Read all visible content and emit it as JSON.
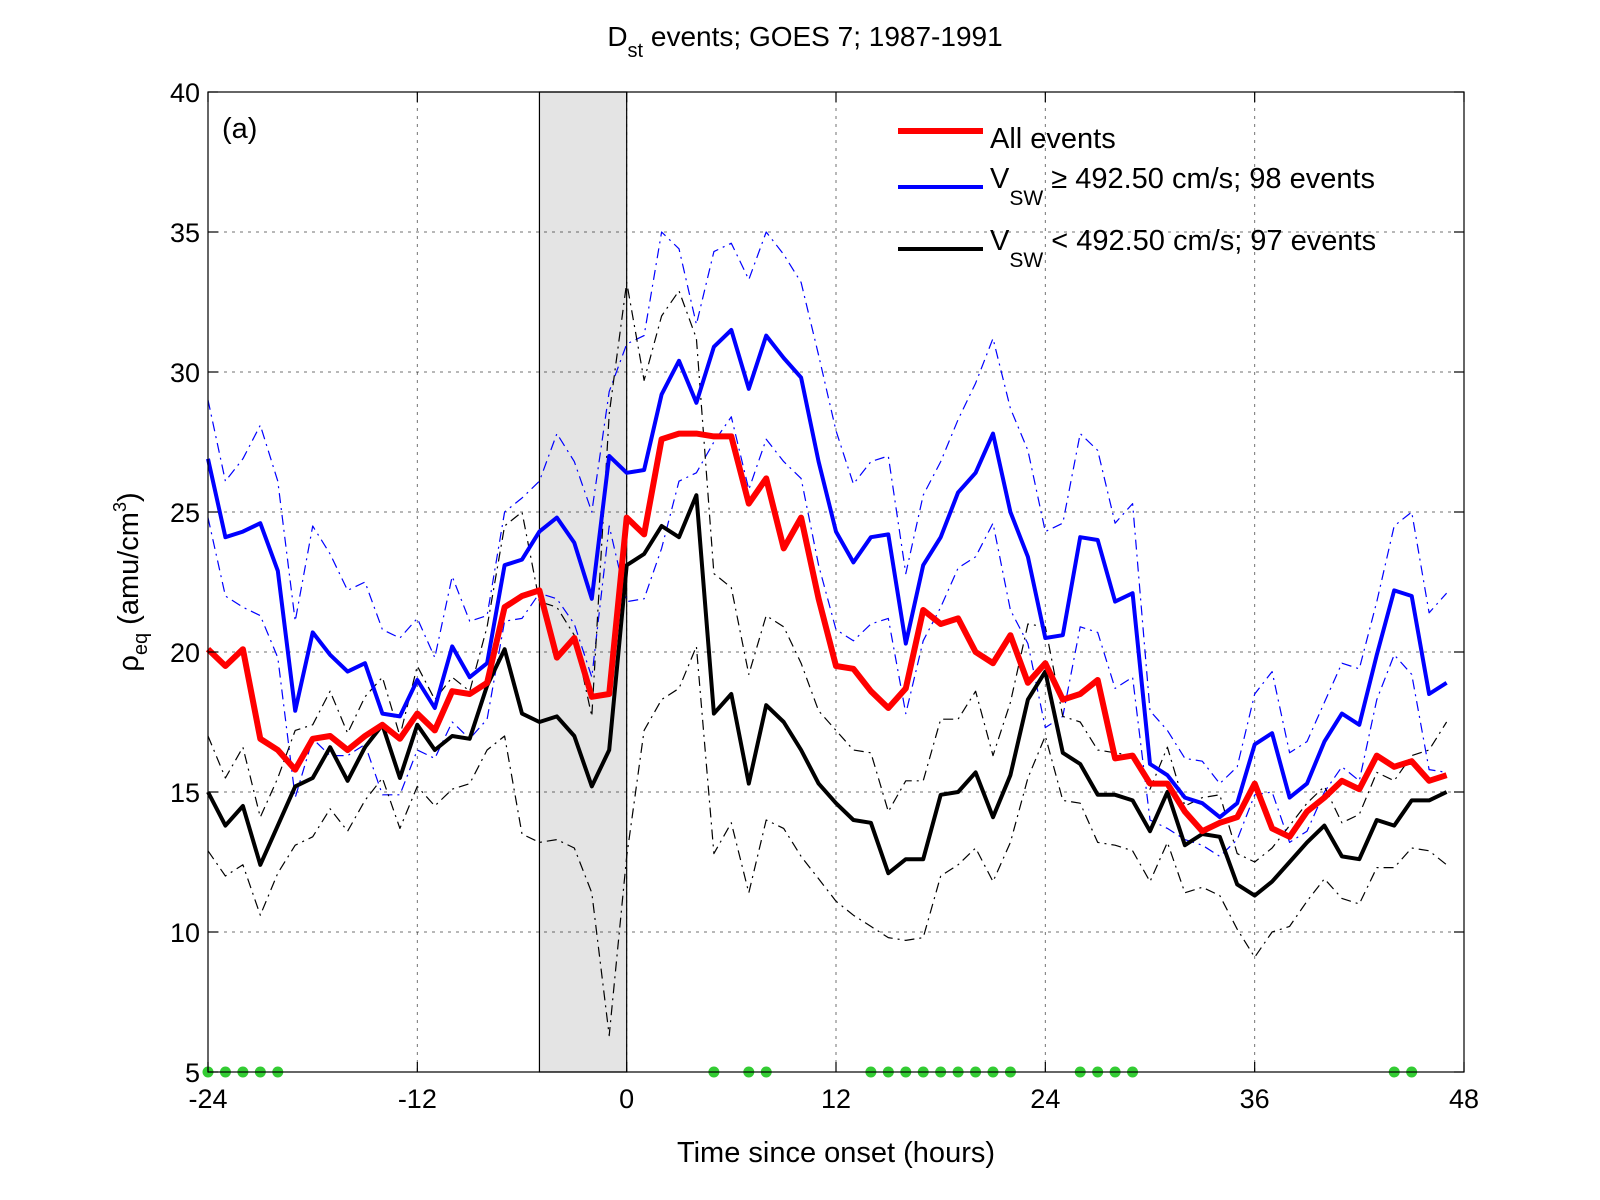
{
  "chart_data": {
    "type": "line",
    "title": "D",
    "title_sub": "st",
    "title_rest": " events; GOES 7; 1987-1991",
    "panel_label": "(a)",
    "xlabel": "Time since onset (hours)",
    "ylabel_main": "ρ",
    "ylabel_sub": "eq",
    "ylabel_rest": " (amu/cm",
    "ylabel_sup": "3",
    "ylabel_close": ")",
    "xlim": [
      -24,
      48
    ],
    "ylim": [
      5,
      40
    ],
    "xticks": [
      -24,
      -12,
      0,
      12,
      24,
      36,
      48
    ],
    "yticks": [
      5,
      10,
      15,
      20,
      25,
      30,
      35,
      40
    ],
    "grid": true,
    "legend_position": "top-right",
    "shaded_interval": [
      -5,
      0
    ],
    "colors": {
      "all": "#ff0000",
      "high": "#0000ff",
      "low": "#000000",
      "dots": "#33cc33",
      "shade": "#e4e4e4"
    },
    "legend": [
      {
        "key": "all",
        "label": "All events",
        "sub": "",
        "rest": ""
      },
      {
        "key": "high",
        "label": "V",
        "sub": "SW",
        "rest": "  ≥ 492.50 cm/s; 98 events"
      },
      {
        "key": "low",
        "label": "V",
        "sub": "SW",
        "rest": " < 492.50 cm/s; 97 events"
      }
    ],
    "x": [
      -24,
      -23,
      -22,
      -21,
      -20,
      -19,
      -18,
      -17,
      -16,
      -15,
      -14,
      -13,
      -12,
      -11,
      -10,
      -9,
      -8,
      -7,
      -6,
      -5,
      -4,
      -3,
      -2,
      -1,
      0,
      1,
      2,
      3,
      4,
      5,
      6,
      7,
      8,
      9,
      10,
      11,
      12,
      13,
      14,
      15,
      16,
      17,
      18,
      19,
      20,
      21,
      22,
      23,
      24,
      25,
      26,
      27,
      28,
      29,
      30,
      31,
      32,
      33,
      34,
      35,
      36,
      37,
      38,
      39,
      40,
      41,
      42,
      43,
      44,
      45,
      46,
      47
    ],
    "series": [
      {
        "key": "all",
        "role": "mean",
        "values": [
          20.1,
          19.5,
          20.1,
          16.9,
          16.5,
          15.8,
          16.9,
          17.0,
          16.5,
          17.0,
          17.4,
          16.9,
          17.8,
          17.2,
          18.6,
          18.5,
          18.9,
          21.6,
          22.0,
          22.2,
          19.8,
          20.5,
          18.4,
          18.5,
          24.8,
          24.2,
          27.6,
          27.8,
          27.8,
          27.7,
          27.7,
          25.3,
          26.2,
          23.7,
          24.8,
          21.9,
          19.5,
          19.4,
          18.6,
          18.0,
          18.7,
          21.5,
          21.0,
          21.2,
          20.0,
          19.6,
          20.6,
          18.9,
          19.6,
          18.3,
          18.5,
          19.0,
          16.2,
          16.3,
          15.3,
          15.3,
          14.3,
          13.6,
          13.9,
          14.1,
          15.3,
          13.7,
          13.4,
          14.3,
          14.8,
          15.4,
          15.1,
          16.3,
          15.9,
          16.1,
          15.4,
          15.6
        ]
      },
      {
        "key": "high",
        "role": "mean",
        "values": [
          26.9,
          24.1,
          24.3,
          24.6,
          22.9,
          17.9,
          20.7,
          19.9,
          19.3,
          19.6,
          17.8,
          17.7,
          19.0,
          18.0,
          20.2,
          19.1,
          19.6,
          23.1,
          23.3,
          24.3,
          24.8,
          23.9,
          21.9,
          27.0,
          26.4,
          26.5,
          29.2,
          30.4,
          28.9,
          30.9,
          31.5,
          29.4,
          31.3,
          30.5,
          29.8,
          26.8,
          24.3,
          23.2,
          24.1,
          24.2,
          20.3,
          23.1,
          24.1,
          25.7,
          26.4,
          27.8,
          25.0,
          23.4,
          20.5,
          20.6,
          24.1,
          24.0,
          21.8,
          22.1,
          16.0,
          15.6,
          14.8,
          14.6,
          14.1,
          14.6,
          16.7,
          17.1,
          14.8,
          15.3,
          16.8,
          17.8,
          17.4,
          19.9,
          22.2,
          22.0,
          18.5,
          18.9
        ]
      },
      {
        "key": "low",
        "role": "mean",
        "values": [
          15.0,
          13.8,
          14.5,
          12.4,
          13.8,
          15.2,
          15.5,
          16.6,
          15.4,
          16.6,
          17.4,
          15.5,
          17.4,
          16.5,
          17.0,
          16.9,
          18.8,
          20.1,
          17.8,
          17.5,
          17.7,
          17.0,
          15.2,
          16.5,
          23.1,
          23.5,
          24.5,
          24.1,
          25.6,
          17.8,
          18.5,
          15.3,
          18.1,
          17.5,
          16.5,
          15.3,
          14.6,
          14.0,
          13.9,
          12.1,
          12.6,
          12.6,
          14.9,
          15.0,
          15.7,
          14.1,
          15.6,
          18.3,
          19.3,
          16.4,
          16.0,
          14.9,
          14.9,
          14.7,
          13.6,
          15.0,
          13.1,
          13.5,
          13.4,
          11.7,
          11.3,
          11.8,
          12.5,
          13.2,
          13.8,
          12.7,
          12.6,
          14.0,
          13.8,
          14.7,
          14.7,
          15.0
        ]
      },
      {
        "key": "high",
        "role": "bound",
        "values": [
          29.0,
          26.1,
          26.9,
          28.1,
          26.1,
          21.1,
          24.5,
          23.5,
          22.2,
          22.5,
          20.8,
          20.5,
          21.2,
          19.8,
          22.7,
          21.1,
          21.3,
          25.0,
          25.5,
          26.1,
          27.8,
          26.8,
          25.0,
          29.3,
          31.0,
          31.3,
          35.0,
          34.4,
          31.7,
          34.3,
          34.6,
          33.3,
          35.0,
          34.2,
          33.2,
          30.6,
          27.9,
          26.0,
          26.8,
          27.0,
          22.8,
          25.6,
          26.8,
          28.3,
          29.6,
          31.2,
          28.7,
          27.2,
          24.3,
          24.6,
          27.8,
          27.2,
          24.6,
          25.3,
          17.9,
          17.2,
          16.2,
          16.1,
          15.3,
          15.9,
          18.5,
          19.3,
          16.4,
          16.8,
          18.2,
          19.6,
          19.4,
          21.8,
          24.5,
          25.0,
          21.4,
          22.1
        ]
      },
      {
        "key": "high",
        "role": "bound",
        "values": [
          24.8,
          22.0,
          21.6,
          21.3,
          19.8,
          14.8,
          16.9,
          16.3,
          16.3,
          16.7,
          14.9,
          14.9,
          16.5,
          16.2,
          17.5,
          16.9,
          17.6,
          21.1,
          21.2,
          22.1,
          21.9,
          21.0,
          19.1,
          24.5,
          21.8,
          21.9,
          23.7,
          26.1,
          26.4,
          27.5,
          28.4,
          25.8,
          27.6,
          26.8,
          26.2,
          23.1,
          20.8,
          20.4,
          21.0,
          21.2,
          17.8,
          20.4,
          21.6,
          23.0,
          23.4,
          24.6,
          21.5,
          20.3,
          17.3,
          17.7,
          20.9,
          20.7,
          18.7,
          19.1,
          14.0,
          13.7,
          13.3,
          13.1,
          12.7,
          13.3,
          14.9,
          15.0,
          13.2,
          13.6,
          15.0,
          15.9,
          15.4,
          18.3,
          19.9,
          19.2,
          15.8,
          15.7
        ]
      },
      {
        "key": "low",
        "role": "bound",
        "values": [
          17.0,
          15.5,
          16.6,
          14.1,
          15.5,
          17.2,
          17.4,
          18.6,
          17.1,
          18.4,
          19.1,
          17.0,
          19.5,
          18.3,
          19.1,
          18.6,
          20.9,
          24.5,
          25.0,
          21.8,
          21.6,
          20.6,
          17.7,
          28.5,
          33.2,
          29.7,
          32.0,
          32.9,
          31.2,
          22.8,
          22.3,
          19.2,
          21.3,
          20.9,
          19.6,
          17.9,
          17.2,
          16.5,
          16.4,
          14.3,
          15.4,
          15.4,
          17.6,
          17.6,
          18.6,
          16.3,
          18.2,
          21.0,
          20.9,
          17.7,
          17.5,
          16.5,
          16.4,
          16.3,
          15.1,
          16.6,
          14.5,
          14.8,
          14.9,
          12.8,
          12.5,
          13.0,
          13.8,
          14.6,
          15.2,
          13.9,
          14.2,
          15.7,
          15.4,
          16.3,
          16.5,
          17.5
        ]
      },
      {
        "key": "low",
        "role": "bound",
        "values": [
          12.9,
          12.0,
          12.4,
          10.6,
          12.1,
          13.1,
          13.4,
          14.4,
          13.6,
          14.7,
          15.5,
          13.7,
          15.2,
          14.5,
          15.1,
          15.3,
          16.5,
          17.0,
          13.5,
          13.2,
          13.3,
          13.0,
          11.4,
          6.3,
          12.7,
          17.2,
          18.3,
          18.7,
          20.2,
          12.8,
          13.9,
          11.4,
          14.0,
          13.7,
          12.7,
          11.9,
          11.1,
          10.6,
          10.2,
          9.8,
          9.7,
          9.8,
          12.0,
          12.4,
          13.0,
          11.8,
          13.2,
          15.5,
          17.0,
          14.7,
          14.6,
          13.2,
          13.1,
          12.9,
          11.8,
          13.2,
          11.4,
          11.6,
          11.3,
          10.1,
          9.1,
          10.0,
          10.2,
          11.1,
          11.9,
          11.2,
          11.0,
          12.3,
          12.3,
          13.0,
          12.9,
          12.4
        ]
      }
    ],
    "marker_hours": [
      -24,
      -23,
      -22,
      -21,
      -20,
      5,
      7,
      8,
      14,
      15,
      16,
      17,
      18,
      19,
      20,
      21,
      22,
      26,
      27,
      28,
      29,
      44,
      45
    ],
    "marker_y": 5
  }
}
